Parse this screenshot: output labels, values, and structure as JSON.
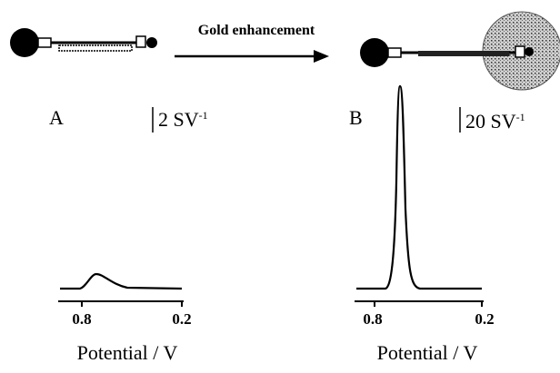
{
  "schematic": {
    "arrow_label": "Gold enhancement"
  },
  "panels": [
    {
      "label": "A",
      "scale_text": "2 SV",
      "scale_exponent": "-1",
      "ticks": [
        "0.8",
        "0.2"
      ],
      "x_label": "Potential / V"
    },
    {
      "label": "B",
      "scale_text": "20 SV",
      "scale_exponent": "-1",
      "ticks": [
        "0.8",
        "0.2"
      ],
      "x_label": "Potential / V"
    }
  ]
}
